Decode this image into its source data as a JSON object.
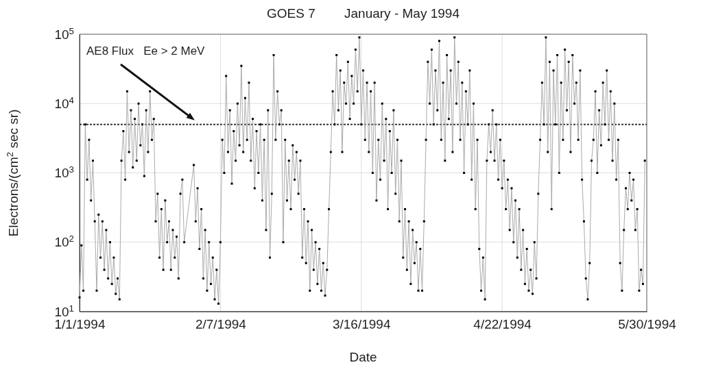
{
  "chart_data": {
    "type": "line",
    "title": "GOES 7        January - May 1994",
    "xlabel": "Date",
    "ylabel": "Electrons/(cm$^{2}$ sec sr)",
    "log": true,
    "grid": true,
    "marker": "square",
    "line_style": "solid",
    "xlim": [
      "1994-01-01",
      "1994-05-30"
    ],
    "xticks": [
      {
        "value": "1994-01-01",
        "label": "1/1/1994"
      },
      {
        "value": "1994-02-07",
        "label": "2/7/1994"
      },
      {
        "value": "1994-03-16",
        "label": "3/16/1994"
      },
      {
        "value": "1994-04-22",
        "label": "4/22/1994"
      },
      {
        "value": "1994-05-30",
        "label": "5/30/1994"
      }
    ],
    "ylim": [
      10,
      100000
    ],
    "yticks": [
      {
        "value": 10,
        "label": "10$^{1}$"
      },
      {
        "value": 100,
        "label": "10$^{2}$"
      },
      {
        "value": 1000,
        "label": "10$^{3}$"
      },
      {
        "value": 10000,
        "label": "10$^{4}$"
      },
      {
        "value": 100000,
        "label": "10$^{5}$"
      }
    ],
    "ref_lines": [
      {
        "axis": "y",
        "value": 5000,
        "label": "AE8 Flux   Ee > 2 MeV",
        "line_style": "dotted",
        "color": "#333333"
      }
    ],
    "x": [
      "1994-01-01T00:00",
      "1994-01-01T12:00",
      "1994-01-02T00:00",
      "1994-01-02T12:00",
      "1994-01-03T00:00",
      "1994-01-03T12:00",
      "1994-01-04T00:00",
      "1994-01-04T12:00",
      "1994-01-05T00:00",
      "1994-01-05T12:00",
      "1994-01-06T00:00",
      "1994-01-06T12:00",
      "1994-01-07T00:00",
      "1994-01-07T12:00",
      "1994-01-08T00:00",
      "1994-01-08T12:00",
      "1994-01-09T00:00",
      "1994-01-09T12:00",
      "1994-01-10T00:00",
      "1994-01-10T12:00",
      "1994-01-11T00:00",
      "1994-01-11T12:00",
      "1994-01-12T00:00",
      "1994-01-12T12:00",
      "1994-01-13T00:00",
      "1994-01-13T12:00",
      "1994-01-14T00:00",
      "1994-01-14T12:00",
      "1994-01-15T00:00",
      "1994-01-15T12:00",
      "1994-01-16T00:00",
      "1994-01-16T12:00",
      "1994-01-17T00:00",
      "1994-01-17T12:00",
      "1994-01-18T00:00",
      "1994-01-18T12:00",
      "1994-01-19T00:00",
      "1994-01-19T12:00",
      "1994-01-20T00:00",
      "1994-01-20T12:00",
      "1994-01-21T00:00",
      "1994-01-21T12:00",
      "1994-01-22T00:00",
      "1994-01-22T12:00",
      "1994-01-23T00:00",
      "1994-01-23T12:00",
      "1994-01-24T00:00",
      "1994-01-24T12:00",
      "1994-01-25T00:00",
      "1994-01-25T12:00",
      "1994-01-26T00:00",
      "1994-01-26T12:00",
      "1994-01-27T00:00",
      "1994-01-27T12:00",
      "1994-01-28T00:00",
      "1994-01-28T12:00",
      "1994-01-31T00:00",
      "1994-01-31T12:00",
      "1994-02-01T00:00",
      "1994-02-01T12:00",
      "1994-02-02T00:00",
      "1994-02-02T12:00",
      "1994-02-03T00:00",
      "1994-02-03T12:00",
      "1994-02-04T00:00",
      "1994-02-04T12:00",
      "1994-02-05T00:00",
      "1994-02-05T12:00",
      "1994-02-06T00:00",
      "1994-02-06T12:00",
      "1994-02-07T00:00",
      "1994-02-07T12:00",
      "1994-02-08T00:00",
      "1994-02-08T12:00",
      "1994-02-09T00:00",
      "1994-02-09T12:00",
      "1994-02-10T00:00",
      "1994-02-10T12:00",
      "1994-02-11T00:00",
      "1994-02-11T12:00",
      "1994-02-12T00:00",
      "1994-02-12T12:00",
      "1994-02-13T00:00",
      "1994-02-13T12:00",
      "1994-02-14T00:00",
      "1994-02-14T12:00",
      "1994-02-15T00:00",
      "1994-02-15T12:00",
      "1994-02-16T00:00",
      "1994-02-16T12:00",
      "1994-02-17T00:00",
      "1994-02-17T12:00",
      "1994-02-18T00:00",
      "1994-02-18T12:00",
      "1994-02-19T00:00",
      "1994-02-19T12:00",
      "1994-02-20T00:00",
      "1994-02-20T12:00",
      "1994-02-21T00:00",
      "1994-02-21T12:00",
      "1994-02-22T00:00",
      "1994-02-22T12:00",
      "1994-02-23T00:00",
      "1994-02-23T12:00",
      "1994-02-24T00:00",
      "1994-02-24T12:00",
      "1994-02-25T00:00",
      "1994-02-25T12:00",
      "1994-02-26T00:00",
      "1994-02-26T12:00",
      "1994-02-27T00:00",
      "1994-02-27T12:00",
      "1994-02-28T00:00",
      "1994-02-28T12:00",
      "1994-03-01T00:00",
      "1994-03-01T12:00",
      "1994-03-02T00:00",
      "1994-03-02T12:00",
      "1994-03-03T00:00",
      "1994-03-03T12:00",
      "1994-03-04T00:00",
      "1994-03-04T12:00",
      "1994-03-05T00:00",
      "1994-03-05T12:00",
      "1994-03-06T00:00",
      "1994-03-06T12:00",
      "1994-03-07T00:00",
      "1994-03-07T12:00",
      "1994-03-08T00:00",
      "1994-03-08T12:00",
      "1994-03-09T00:00",
      "1994-03-09T12:00",
      "1994-03-10T00:00",
      "1994-03-10T12:00",
      "1994-03-11T00:00",
      "1994-03-11T12:00",
      "1994-03-12T00:00",
      "1994-03-12T12:00",
      "1994-03-13T00:00",
      "1994-03-13T12:00",
      "1994-03-14T00:00",
      "1994-03-14T12:00",
      "1994-03-15T00:00",
      "1994-03-15T12:00",
      "1994-03-16T00:00",
      "1994-03-16T12:00",
      "1994-03-17T00:00",
      "1994-03-17T12:00",
      "1994-03-18T00:00",
      "1994-03-18T12:00",
      "1994-03-19T00:00",
      "1994-03-19T12:00",
      "1994-03-20T00:00",
      "1994-03-20T12:00",
      "1994-03-21T00:00",
      "1994-03-21T12:00",
      "1994-03-22T00:00",
      "1994-03-22T12:00",
      "1994-03-23T00:00",
      "1994-03-23T12:00",
      "1994-03-24T00:00",
      "1994-03-24T12:00",
      "1994-03-25T00:00",
      "1994-03-25T12:00",
      "1994-03-26T00:00",
      "1994-03-26T12:00",
      "1994-03-27T00:00",
      "1994-03-27T12:00",
      "1994-03-28T00:00",
      "1994-03-28T12:00",
      "1994-03-29T00:00",
      "1994-03-29T12:00",
      "1994-03-30T00:00",
      "1994-03-30T12:00",
      "1994-03-31T00:00",
      "1994-03-31T12:00",
      "1994-04-01T00:00",
      "1994-04-01T12:00",
      "1994-04-02T00:00",
      "1994-04-02T12:00",
      "1994-04-03T00:00",
      "1994-04-03T12:00",
      "1994-04-04T00:00",
      "1994-04-04T12:00",
      "1994-04-05T00:00",
      "1994-04-05T12:00",
      "1994-04-06T00:00",
      "1994-04-06T12:00",
      "1994-04-07T00:00",
      "1994-04-07T12:00",
      "1994-04-08T00:00",
      "1994-04-08T12:00",
      "1994-04-09T00:00",
      "1994-04-09T12:00",
      "1994-04-10T00:00",
      "1994-04-10T12:00",
      "1994-04-11T00:00",
      "1994-04-11T12:00",
      "1994-04-12T00:00",
      "1994-04-12T12:00",
      "1994-04-13T00:00",
      "1994-04-13T12:00",
      "1994-04-14T00:00",
      "1994-04-14T12:00",
      "1994-04-15T00:00",
      "1994-04-15T12:00",
      "1994-04-16T00:00",
      "1994-04-16T12:00",
      "1994-04-17T00:00",
      "1994-04-17T12:00",
      "1994-04-18T00:00",
      "1994-04-18T12:00",
      "1994-04-19T00:00",
      "1994-04-19T12:00",
      "1994-04-20T00:00",
      "1994-04-20T12:00",
      "1994-04-21T00:00",
      "1994-04-21T12:00",
      "1994-04-22T00:00",
      "1994-04-22T12:00",
      "1994-04-23T00:00",
      "1994-04-23T12:00",
      "1994-04-24T00:00",
      "1994-04-24T12:00",
      "1994-04-25T00:00",
      "1994-04-25T12:00",
      "1994-04-26T00:00",
      "1994-04-26T12:00",
      "1994-04-27T00:00",
      "1994-04-27T12:00",
      "1994-04-28T00:00",
      "1994-04-28T12:00",
      "1994-04-29T00:00",
      "1994-04-29T12:00",
      "1994-04-30T00:00",
      "1994-04-30T12:00",
      "1994-05-01T00:00",
      "1994-05-01T12:00",
      "1994-05-02T00:00",
      "1994-05-02T12:00",
      "1994-05-03T00:00",
      "1994-05-03T12:00",
      "1994-05-04T00:00",
      "1994-05-04T12:00",
      "1994-05-05T00:00",
      "1994-05-05T12:00",
      "1994-05-06T00:00",
      "1994-05-06T12:00",
      "1994-05-07T00:00",
      "1994-05-07T12:00",
      "1994-05-08T00:00",
      "1994-05-08T12:00",
      "1994-05-09T00:00",
      "1994-05-09T12:00",
      "1994-05-10T00:00",
      "1994-05-10T12:00",
      "1994-05-11T00:00",
      "1994-05-11T12:00",
      "1994-05-12T00:00",
      "1994-05-12T12:00",
      "1994-05-13T00:00",
      "1994-05-13T12:00",
      "1994-05-14T00:00",
      "1994-05-14T12:00",
      "1994-05-15T00:00",
      "1994-05-15T12:00",
      "1994-05-16T00:00",
      "1994-05-16T12:00",
      "1994-05-17T00:00",
      "1994-05-17T12:00",
      "1994-05-18T00:00",
      "1994-05-18T12:00",
      "1994-05-19T00:00",
      "1994-05-19T12:00",
      "1994-05-20T00:00",
      "1994-05-20T12:00",
      "1994-05-21T00:00",
      "1994-05-21T12:00",
      "1994-05-22T00:00",
      "1994-05-22T12:00",
      "1994-05-23T00:00",
      "1994-05-23T12:00",
      "1994-05-24T00:00",
      "1994-05-24T12:00",
      "1994-05-25T00:00",
      "1994-05-25T12:00",
      "1994-05-26T00:00",
      "1994-05-26T12:00",
      "1994-05-27T00:00",
      "1994-05-27T12:00",
      "1994-05-28T00:00",
      "1994-05-28T12:00",
      "1994-05-29T00:00",
      "1994-05-29T12:00"
    ],
    "series": [
      {
        "color": "#000000",
        "values": [
          16,
          90,
          20,
          5000,
          800,
          3000,
          400,
          1500,
          200,
          20,
          250,
          60,
          200,
          40,
          150,
          30,
          100,
          25,
          60,
          18,
          30,
          15,
          1500,
          4000,
          800,
          15000,
          2000,
          8000,
          1200,
          6000,
          1500,
          10000,
          2500,
          5000,
          900,
          8000,
          2000,
          15000,
          3000,
          6000,
          200,
          500,
          60,
          300,
          40,
          400,
          100,
          200,
          40,
          150,
          60,
          120,
          30,
          500,
          800,
          100,
          1300,
          200,
          600,
          80,
          300,
          30,
          150,
          20,
          100,
          25,
          60,
          15,
          40,
          13,
          100,
          3000,
          1000,
          25000,
          2000,
          8000,
          700,
          4000,
          1500,
          10000,
          2500,
          35000,
          2000,
          12000,
          3000,
          20000,
          1500,
          6000,
          600,
          4000,
          1000,
          5000,
          400,
          3000,
          150,
          8000,
          60,
          500,
          50000,
          3000,
          15000,
          5000,
          8000,
          100,
          3000,
          400,
          1500,
          300,
          2500,
          800,
          2000,
          500,
          1500,
          60,
          300,
          50,
          200,
          20,
          150,
          40,
          100,
          25,
          80,
          20,
          50,
          17,
          40,
          300,
          2000,
          15000,
          5000,
          50000,
          8000,
          30000,
          2000,
          20000,
          10000,
          40000,
          6000,
          25000,
          10000,
          60000,
          15000,
          90000,
          5000,
          30000,
          3000,
          20000,
          2000,
          15000,
          1000,
          20000,
          400,
          3000,
          800,
          10000,
          1500,
          6000,
          300,
          4000,
          1000,
          8000,
          500,
          3000,
          200,
          1500,
          60,
          300,
          40,
          200,
          25,
          150,
          50,
          100,
          20,
          80,
          20,
          200,
          3000,
          40000,
          10000,
          60000,
          5000,
          30000,
          8000,
          80000,
          3000,
          20000,
          1500,
          50000,
          6000,
          30000,
          2000,
          90000,
          10000,
          40000,
          3000,
          20000,
          1000,
          15000,
          5000,
          30000,
          800,
          10000,
          300,
          3000,
          80,
          20,
          60,
          15,
          1500,
          5000,
          2000,
          8000,
          1500,
          5000,
          800,
          3000,
          600,
          1500,
          300,
          800,
          150,
          600,
          100,
          400,
          60,
          300,
          40,
          150,
          25,
          80,
          20,
          40,
          18,
          100,
          30,
          500,
          3000,
          20000,
          5000,
          90000,
          2000,
          40000,
          300,
          30000,
          5000,
          50000,
          1000,
          20000,
          3000,
          60000,
          8000,
          40000,
          2000,
          50000,
          10000,
          20000,
          3000,
          30000,
          800,
          200,
          30,
          15,
          50,
          1500,
          3000,
          15000,
          1000,
          8000,
          2500,
          20000,
          5000,
          30000,
          3000,
          15000,
          1500,
          10000,
          800,
          3000,
          50,
          20,
          150,
          600,
          300,
          1000,
          400,
          800,
          150,
          300,
          20,
          40,
          25,
          1500
        ]
      }
    ]
  }
}
